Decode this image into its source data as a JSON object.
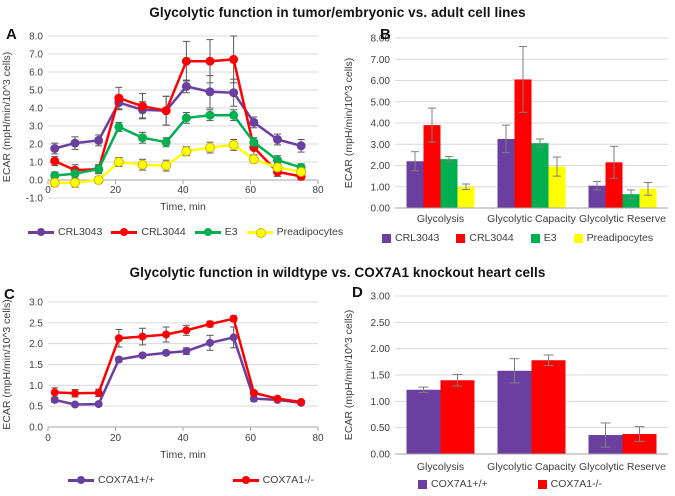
{
  "figure": {
    "top_title": "Glycolytic function in tumor/embryonic vs. adult cell lines",
    "bottom_title": "Glycolytic function in wildtype vs. COX7A1 knockout heart cells"
  },
  "colors": {
    "purple": "#6B3FA0",
    "red": "#FF0000",
    "green": "#00B050",
    "yellow": "#FFFF00",
    "yellow_edge": "#D9B600",
    "grid": "#D9D9D9",
    "axis": "#A6A6A6",
    "error_line": "#595959",
    "error_bar": "#7F7F7F",
    "text": "#404040"
  },
  "chart_data": [
    {
      "panel": "A",
      "type": "line",
      "xlabel": "Time, min",
      "ylabel": "ECAR (mpH/min/10^3 cells)",
      "xlim": [
        0,
        80
      ],
      "xticks": [
        0,
        20,
        40,
        60,
        80
      ],
      "ylim": [
        -1.0,
        8.0
      ],
      "ytick_step": 1.0,
      "ytick_decimals": 1,
      "grid": true,
      "legend_position": "bottom",
      "x": [
        2,
        8,
        15,
        21,
        28,
        35,
        41,
        48,
        55,
        61,
        68,
        75
      ],
      "series": [
        {
          "name": "CRL3043",
          "color": "purple",
          "values": [
            1.75,
            2.05,
            2.2,
            4.3,
            3.9,
            3.85,
            5.2,
            4.9,
            4.85,
            3.2,
            2.25,
            1.9
          ],
          "errors": [
            0.3,
            0.35,
            0.3,
            0.4,
            0.45,
            0.8,
            0.35,
            0.9,
            0.75,
            0.3,
            0.3,
            0.35
          ]
        },
        {
          "name": "CRL3044",
          "color": "red",
          "values": [
            1.05,
            0.55,
            0.6,
            4.55,
            4.1,
            3.85,
            6.6,
            6.6,
            6.7,
            1.8,
            0.45,
            0.2
          ],
          "errors": [
            0.25,
            0.3,
            0.25,
            0.6,
            0.7,
            0.8,
            1.1,
            1.2,
            1.3,
            0.4,
            0.25,
            0.2
          ]
        },
        {
          "name": "E3",
          "color": "green",
          "values": [
            0.25,
            0.35,
            0.6,
            2.95,
            2.35,
            2.1,
            3.45,
            3.6,
            3.6,
            2.1,
            1.1,
            0.7
          ],
          "errors": [
            0.2,
            0.25,
            0.2,
            0.25,
            0.3,
            0.25,
            0.3,
            0.3,
            0.3,
            0.25,
            0.25,
            0.2
          ]
        },
        {
          "name": "Preadipocytes",
          "color": "yellow",
          "values": [
            -0.15,
            -0.15,
            0.0,
            1.0,
            0.85,
            0.8,
            1.6,
            1.8,
            1.95,
            1.15,
            0.7,
            0.45
          ],
          "errors": [
            0.2,
            0.25,
            0.2,
            0.25,
            0.3,
            0.3,
            0.25,
            0.3,
            0.3,
            0.2,
            0.25,
            0.2
          ]
        }
      ]
    },
    {
      "panel": "B",
      "type": "bar",
      "ylabel": "ECAR (mpH/min/10^3 cells)",
      "ylim": [
        0,
        8
      ],
      "ytick_step": 1.0,
      "ytick_decimals": 2,
      "grid": true,
      "legend_position": "bottom",
      "categories": [
        "Glycolysis",
        "Glycolytic Capacity",
        "Glycolytic Reserve"
      ],
      "series": [
        {
          "name": "CRL3043",
          "color": "purple",
          "values": [
            2.2,
            3.25,
            1.05
          ],
          "errors": [
            0.45,
            0.65,
            0.2
          ]
        },
        {
          "name": "CRL3044",
          "color": "red",
          "values": [
            3.9,
            6.05,
            2.15
          ],
          "errors": [
            0.8,
            1.55,
            0.75
          ]
        },
        {
          "name": "E3",
          "color": "green",
          "values": [
            2.3,
            3.05,
            0.65
          ],
          "errors": [
            0.12,
            0.2,
            0.2
          ]
        },
        {
          "name": "Preadipocytes",
          "color": "yellow",
          "values": [
            1.0,
            1.95,
            0.9
          ],
          "errors": [
            0.13,
            0.45,
            0.3
          ]
        }
      ]
    },
    {
      "panel": "C",
      "type": "line",
      "xlabel": "Time, min",
      "ylabel": "ECAR (mpH/min/10^3 cells)",
      "xlim": [
        0,
        80
      ],
      "xticks": [
        0,
        20,
        40,
        60,
        80
      ],
      "ylim": [
        0.0,
        3.0
      ],
      "ytick_step": 0.5,
      "ytick_decimals": 1,
      "grid": true,
      "legend_position": "bottom",
      "x": [
        2,
        8,
        15,
        21,
        28,
        35,
        41,
        48,
        55,
        61,
        68,
        75
      ],
      "series": [
        {
          "name": "COX7A1+/+",
          "color": "purple",
          "values": [
            0.65,
            0.54,
            0.55,
            1.62,
            1.72,
            1.78,
            1.82,
            2.02,
            2.15,
            0.68,
            0.65,
            0.58
          ],
          "errors": [
            0.06,
            0.04,
            0.04,
            0.06,
            0.05,
            0.05,
            0.08,
            0.18,
            0.25,
            0.07,
            0.04,
            0.03
          ]
        },
        {
          "name": "COX7A1-/-",
          "color": "red",
          "values": [
            0.83,
            0.81,
            0.82,
            2.13,
            2.17,
            2.22,
            2.32,
            2.47,
            2.6,
            0.82,
            0.68,
            0.6
          ],
          "errors": [
            0.11,
            0.09,
            0.09,
            0.21,
            0.2,
            0.18,
            0.12,
            0.07,
            0.07,
            0.05,
            0.04,
            0.03
          ]
        }
      ]
    },
    {
      "panel": "D",
      "type": "bar",
      "ylabel": "ECAR (mpH/min/10^3 cells)",
      "ylim": [
        0,
        3
      ],
      "ytick_step": 0.5,
      "ytick_decimals": 2,
      "grid": true,
      "legend_position": "bottom",
      "categories": [
        "Glycolysis",
        "Glycolytic Capacity",
        "Glycolytic Reserve"
      ],
      "series": [
        {
          "name": "COX7A1+/+",
          "color": "purple",
          "values": [
            1.22,
            1.58,
            0.36
          ],
          "errors": [
            0.05,
            0.23,
            0.23
          ]
        },
        {
          "name": "COX7A1-/-",
          "color": "red",
          "values": [
            1.4,
            1.78,
            0.38
          ],
          "errors": [
            0.11,
            0.1,
            0.14
          ]
        }
      ]
    }
  ]
}
